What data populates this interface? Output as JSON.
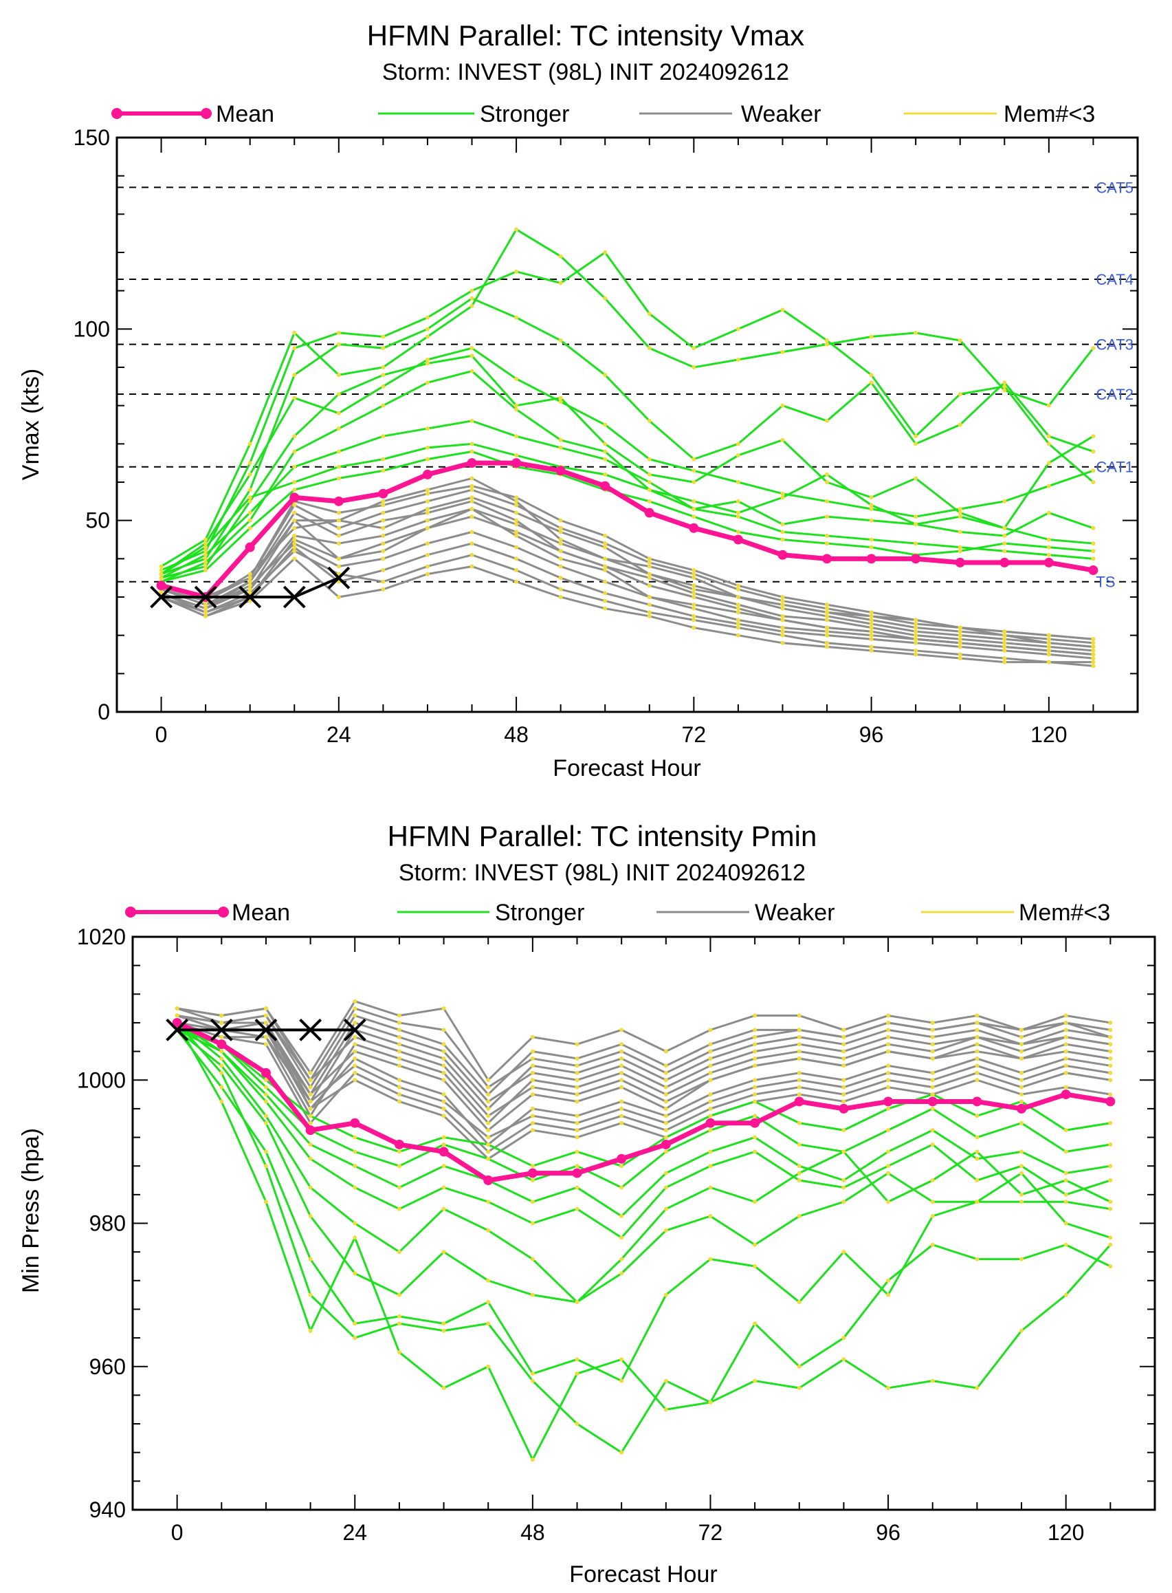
{
  "legend": {
    "mean": "Mean",
    "stronger": "Stronger",
    "weaker": "Weaker",
    "few": "Mem#<3"
  },
  "colors": {
    "mean": "#ff1493",
    "stronger": "#1ee01e",
    "weaker": "#8c8c8c",
    "few": "#f0dc3c",
    "best_track": "#000000",
    "category": "#3a5bd9"
  },
  "chart_data": [
    {
      "type": "line",
      "title": "HFMN Parallel: TC intensity Vmax",
      "subtitle": "Storm: INVEST (98L) INIT 2024092612",
      "xlabel": "Forecast Hour",
      "ylabel": "Vmax (kts)",
      "xlim": [
        -6,
        132
      ],
      "ylim": [
        0,
        150
      ],
      "xticks": [
        0,
        24,
        48,
        72,
        96,
        120
      ],
      "yticks": [
        0,
        50,
        100,
        150
      ],
      "grid": false,
      "legend_position": "top",
      "x": [
        0,
        6,
        12,
        18,
        24,
        30,
        36,
        42,
        48,
        54,
        60,
        66,
        72,
        78,
        84,
        90,
        96,
        102,
        108,
        114,
        120,
        126
      ],
      "mean": [
        33,
        30,
        43,
        56,
        55,
        57,
        62,
        65,
        65,
        63,
        59,
        52,
        48,
        45,
        41,
        40,
        40,
        40,
        39,
        39,
        39,
        37
      ],
      "best_track": {
        "x": [
          0,
          6,
          12,
          18,
          24
        ],
        "values": [
          30,
          30,
          30,
          30,
          35
        ]
      },
      "reference_lines": [
        {
          "label": "TS",
          "value": 34
        },
        {
          "label": "CAT1",
          "value": 64
        },
        {
          "label": "CAT2",
          "value": 83
        },
        {
          "label": "CAT3",
          "value": 96
        },
        {
          "label": "CAT4",
          "value": 113
        },
        {
          "label": "CAT5",
          "value": 137
        }
      ],
      "stronger_members": [
        [
          38,
          45,
          70,
          99,
          88,
          90,
          98,
          106,
          126,
          119,
          108,
          95,
          90,
          92,
          94,
          96,
          98,
          99,
          97,
          84,
          80,
          95
        ],
        [
          37,
          42,
          65,
          95,
          99,
          98,
          103,
          110,
          115,
          112,
          120,
          104,
          95,
          100,
          105,
          97,
          88,
          72,
          83,
          85,
          70,
          60
        ],
        [
          36,
          40,
          58,
          88,
          96,
          95,
          100,
          108,
          103,
          97,
          88,
          76,
          66,
          70,
          80,
          76,
          86,
          70,
          75,
          86,
          72,
          68
        ],
        [
          35,
          38,
          55,
          72,
          83,
          88,
          91,
          93,
          80,
          82,
          70,
          62,
          60,
          67,
          71,
          60,
          56,
          61,
          52,
          48,
          65,
          72
        ],
        [
          36,
          44,
          62,
          82,
          78,
          85,
          92,
          95,
          87,
          81,
          75,
          66,
          63,
          60,
          57,
          55,
          53,
          51,
          53,
          55,
          59,
          63
        ],
        [
          34,
          39,
          50,
          68,
          74,
          80,
          86,
          89,
          79,
          71,
          68,
          58,
          55,
          52,
          56,
          62,
          54,
          49,
          47,
          46,
          52,
          48
        ],
        [
          35,
          41,
          52,
          64,
          68,
          72,
          74,
          76,
          72,
          69,
          66,
          60,
          53,
          55,
          49,
          51,
          50,
          49,
          51,
          48,
          45,
          44
        ],
        [
          36,
          43,
          56,
          60,
          64,
          66,
          69,
          70,
          67,
          64,
          62,
          58,
          53,
          51,
          47,
          46,
          45,
          44,
          43,
          42,
          41,
          40
        ],
        [
          34,
          37,
          48,
          58,
          61,
          63,
          66,
          68,
          64,
          62,
          58,
          55,
          51,
          47,
          45,
          44,
          43,
          41,
          42,
          44,
          43,
          42
        ]
      ],
      "weaker_members": [
        [
          32,
          28,
          32,
          50,
          50,
          55,
          58,
          61,
          55,
          45,
          40,
          38,
          35,
          30,
          28,
          26,
          25,
          24,
          22,
          20,
          18,
          17
        ],
        [
          31,
          27,
          34,
          52,
          46,
          50,
          52,
          55,
          50,
          42,
          38,
          35,
          31,
          28,
          25,
          24,
          22,
          20,
          19,
          18,
          17,
          16
        ],
        [
          30,
          25,
          30,
          45,
          40,
          42,
          48,
          53,
          46,
          40,
          37,
          30,
          28,
          26,
          24,
          22,
          21,
          19,
          18,
          17,
          16,
          15
        ],
        [
          32,
          29,
          36,
          48,
          50,
          48,
          53,
          56,
          52,
          47,
          43,
          36,
          32,
          30,
          27,
          25,
          23,
          21,
          20,
          19,
          18,
          17
        ],
        [
          33,
          30,
          35,
          55,
          52,
          54,
          57,
          59,
          56,
          50,
          46,
          40,
          37,
          33,
          30,
          28,
          26,
          24,
          22,
          21,
          20,
          19
        ],
        [
          31,
          27,
          33,
          44,
          38,
          40,
          44,
          47,
          43,
          38,
          34,
          30,
          27,
          24,
          22,
          21,
          20,
          19,
          18,
          17,
          16,
          15
        ],
        [
          30,
          26,
          31,
          42,
          36,
          34,
          38,
          41,
          37,
          32,
          29,
          26,
          24,
          22,
          20,
          18,
          17,
          16,
          15,
          14,
          13,
          13
        ],
        [
          32,
          28,
          34,
          50,
          40,
          44,
          48,
          51,
          47,
          42,
          38,
          33,
          30,
          27,
          24,
          22,
          21,
          19,
          18,
          17,
          16,
          15
        ],
        [
          31,
          27,
          32,
          46,
          44,
          46,
          50,
          53,
          49,
          44,
          40,
          36,
          33,
          30,
          28,
          26,
          24,
          22,
          21,
          20,
          19,
          18
        ],
        [
          30,
          25,
          29,
          40,
          30,
          32,
          36,
          38,
          34,
          30,
          27,
          25,
          22,
          20,
          18,
          17,
          16,
          15,
          14,
          13,
          13,
          12
        ],
        [
          32,
          29,
          35,
          54,
          48,
          52,
          55,
          58,
          54,
          48,
          44,
          39,
          36,
          32,
          29,
          27,
          25,
          23,
          22,
          21,
          20,
          19
        ],
        [
          31,
          26,
          30,
          43,
          34,
          37,
          41,
          44,
          40,
          35,
          31,
          28,
          25,
          23,
          21,
          20,
          19,
          18,
          17,
          16,
          15,
          14
        ]
      ]
    },
    {
      "type": "line",
      "title": "HFMN Parallel: TC intensity Pmin",
      "subtitle": "Storm: INVEST (98L) INIT 2024092612",
      "xlabel": "Forecast Hour",
      "ylabel": "Min Press (hpa)",
      "xlim": [
        -6,
        132
      ],
      "ylim": [
        940,
        1020
      ],
      "xticks": [
        0,
        24,
        48,
        72,
        96,
        120
      ],
      "yticks": [
        940,
        960,
        980,
        1000,
        1020
      ],
      "grid": false,
      "legend_position": "top",
      "x": [
        0,
        6,
        12,
        18,
        24,
        30,
        36,
        42,
        48,
        54,
        60,
        66,
        72,
        78,
        84,
        90,
        96,
        102,
        108,
        114,
        120,
        126
      ],
      "mean": [
        1008,
        1005,
        1001,
        993,
        994,
        991,
        990,
        986,
        987,
        987,
        989,
        991,
        994,
        994,
        997,
        996,
        997,
        997,
        997,
        996,
        998,
        997
      ],
      "best_track": {
        "x": [
          0,
          6,
          12,
          18,
          24
        ],
        "values": [
          1007,
          1007,
          1007,
          1007,
          1007
        ]
      },
      "stronger_members": [
        [
          1008,
          997,
          983,
          965,
          978,
          962,
          957,
          960,
          947,
          959,
          961,
          954,
          955,
          958,
          957,
          961,
          957,
          958,
          957,
          965,
          970,
          977
        ],
        [
          1008,
          1001,
          988,
          970,
          964,
          966,
          965,
          966,
          958,
          952,
          948,
          958,
          955,
          966,
          960,
          964,
          972,
          977,
          975,
          975,
          977,
          974
        ],
        [
          1007,
          999,
          990,
          975,
          966,
          967,
          966,
          969,
          959,
          961,
          958,
          970,
          975,
          974,
          969,
          976,
          970,
          981,
          983,
          983,
          983,
          982
        ],
        [
          1007,
          1002,
          994,
          981,
          973,
          970,
          976,
          972,
          970,
          969,
          973,
          979,
          981,
          977,
          981,
          983,
          987,
          983,
          983,
          987,
          980,
          978
        ],
        [
          1008,
          1003,
          995,
          985,
          980,
          976,
          982,
          979,
          975,
          969,
          975,
          982,
          985,
          983,
          987,
          990,
          983,
          986,
          990,
          984,
          986,
          983
        ],
        [
          1008,
          1004,
          997,
          989,
          985,
          982,
          985,
          983,
          980,
          982,
          978,
          985,
          988,
          990,
          986,
          985,
          988,
          991,
          986,
          988,
          984,
          986
        ],
        [
          1007,
          1004,
          998,
          991,
          988,
          985,
          988,
          986,
          983,
          985,
          981,
          987,
          990,
          992,
          988,
          986,
          990,
          993,
          989,
          990,
          987,
          988
        ],
        [
          1008,
          1005,
          999,
          993,
          990,
          988,
          991,
          989,
          986,
          988,
          985,
          990,
          993,
          995,
          991,
          990,
          993,
          996,
          992,
          994,
          990,
          991
        ],
        [
          1007,
          1005,
          1000,
          995,
          992,
          990,
          992,
          991,
          988,
          990,
          988,
          992,
          995,
          997,
          994,
          993,
          996,
          998,
          995,
          997,
          993,
          994
        ]
      ],
      "weaker_members": [
        [
          1010,
          1009,
          1010,
          1001,
          1011,
          1009,
          1010,
          1000,
          1006,
          1005,
          1007,
          1004,
          1007,
          1009,
          1009,
          1007,
          1009,
          1008,
          1009,
          1007,
          1009,
          1008
        ],
        [
          1009,
          1008,
          1009,
          999,
          1009,
          1007,
          1005,
          998,
          1004,
          1003,
          1005,
          1002,
          1005,
          1007,
          1007,
          1006,
          1008,
          1007,
          1008,
          1006,
          1008,
          1007
        ],
        [
          1009,
          1007,
          1008,
          997,
          1007,
          1005,
          1003,
          996,
          1002,
          1001,
          1003,
          1000,
          1003,
          1005,
          1006,
          1005,
          1007,
          1006,
          1007,
          1005,
          1007,
          1006
        ],
        [
          1008,
          1006,
          1006,
          995,
          1005,
          1003,
          1001,
          994,
          1000,
          999,
          1001,
          998,
          1001,
          1003,
          1004,
          1003,
          1005,
          1004,
          1006,
          1004,
          1006,
          1005
        ],
        [
          1008,
          1007,
          1007,
          998,
          1004,
          1002,
          1000,
          993,
          998,
          997,
          999,
          996,
          1000,
          1002,
          1003,
          1002,
          1004,
          1003,
          1004,
          1003,
          1005,
          1004
        ],
        [
          1009,
          1008,
          1008,
          996,
          1003,
          1000,
          998,
          991,
          996,
          995,
          997,
          995,
          998,
          1000,
          1001,
          1000,
          1002,
          1001,
          1003,
          1001,
          1003,
          1002
        ],
        [
          1008,
          1006,
          1005,
          994,
          1001,
          998,
          996,
          990,
          994,
          993,
          995,
          993,
          996,
          998,
          999,
          998,
          1000,
          999,
          1001,
          999,
          1001,
          1000
        ],
        [
          1009,
          1007,
          1006,
          997,
          1002,
          999,
          997,
          992,
          995,
          994,
          996,
          994,
          997,
          999,
          1000,
          999,
          1001,
          1000,
          1002,
          1000,
          1002,
          1001
        ],
        [
          1010,
          1008,
          1009,
          1000,
          1006,
          1004,
          1002,
          995,
          999,
          998,
          1000,
          997,
          1000,
          1002,
          1003,
          1002,
          1004,
          1003,
          1005,
          1003,
          1004,
          1003
        ],
        [
          1008,
          1007,
          1007,
          996,
          1000,
          997,
          995,
          989,
          993,
          992,
          994,
          992,
          995,
          997,
          998,
          997,
          999,
          998,
          1000,
          998,
          999,
          998
        ],
        [
          1009,
          1008,
          1008,
          998,
          1008,
          1006,
          1004,
          997,
          1001,
          1000,
          1002,
          999,
          1002,
          1004,
          1005,
          1004,
          1006,
          1005,
          1006,
          1005,
          1006,
          1005
        ],
        [
          1010,
          1009,
          1010,
          1000,
          1010,
          1008,
          1007,
          999,
          1003,
          1002,
          1004,
          1001,
          1004,
          1006,
          1007,
          1006,
          1008,
          1007,
          1008,
          1007,
          1008,
          1006
        ]
      ]
    }
  ]
}
